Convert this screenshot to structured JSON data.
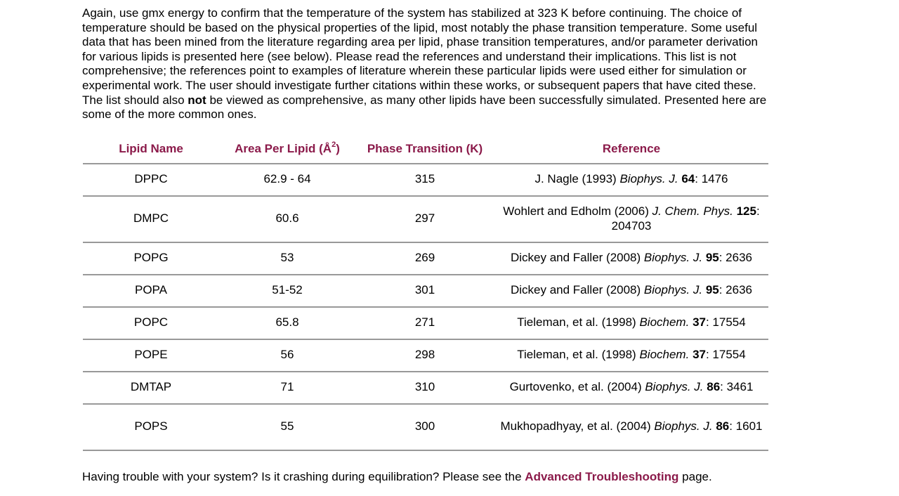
{
  "intro": {
    "before_not": "Again, use gmx energy to confirm that the temperature of the system has stabilized at 323 K before continuing. The choice of temperature should be based on the physical properties of the lipid, most notably the phase transition temperature. Some useful data that has been mined from the literature regarding area per lipid, phase transition temperatures, and/or parameter derivation for various lipids is presented here (see below). Please read the references and understand their implications. This list is not comprehensive; the references point to examples of literature wherein these particular lipids were used either for simulation or experimental work. The user should investigate further citations within these works, or subsequent papers that have cited these. The list should also",
    "emphasis": "not",
    "after_not": "be viewed as comprehensive, as many other lipids have been successfully simulated. Presented here are some of the more common ones."
  },
  "table": {
    "headers": {
      "lipid_name": "Lipid Name",
      "area_per_lipid": "Area Per Lipid (Å",
      "area_sup": "2",
      "area_close": ")",
      "phase_transition": "Phase Transition (K)",
      "reference": "Reference"
    },
    "rows": [
      {
        "name": "DPPC",
        "area": "62.9 - 64",
        "tm": "315",
        "authors": "J. Nagle (1993)",
        "journal": "Biophys. J.",
        "volume": "64",
        "page": ": 1476"
      },
      {
        "name": "DMPC",
        "area": "60.6",
        "tm": "297",
        "authors": "Wohlert and Edholm (2006)",
        "journal": "J. Chem. Phys.",
        "volume": "125",
        "page": ": 204703"
      },
      {
        "name": "POPG",
        "area": "53",
        "tm": "269",
        "authors": "Dickey and Faller (2008)",
        "journal": "Biophys. J.",
        "volume": "95",
        "page": ": 2636"
      },
      {
        "name": "POPA",
        "area": "51-52",
        "tm": "301",
        "authors": "Dickey and Faller (2008)",
        "journal": "Biophys. J.",
        "volume": "95",
        "page": ": 2636"
      },
      {
        "name": "POPC",
        "area": "65.8",
        "tm": "271",
        "authors": "Tieleman, et al. (1998)",
        "journal": "Biochem.",
        "volume": "37",
        "page": ": 17554"
      },
      {
        "name": "POPE",
        "area": "56",
        "tm": "298",
        "authors": "Tieleman, et al. (1998)",
        "journal": "Biochem.",
        "volume": "37",
        "page": ": 17554"
      },
      {
        "name": "DMTAP",
        "area": "71",
        "tm": "310",
        "authors": "Gurtovenko, et al. (2004)",
        "journal": "Biophys. J.",
        "volume": "86",
        "page": ": 3461"
      },
      {
        "name": "POPS",
        "area": "55",
        "tm": "300",
        "authors": "Mukhopadhyay, et al. (2004)",
        "journal": "Biophys. J.",
        "volume": "86",
        "page": ": 1601"
      }
    ]
  },
  "outro": {
    "before_link": "Having trouble with your system? Is it crashing during equilibration? Please see the",
    "link_text": "Advanced Troubleshooting",
    "after_link": "page."
  },
  "colors": {
    "accent": "#8b1a4a",
    "rule": "#999999"
  }
}
